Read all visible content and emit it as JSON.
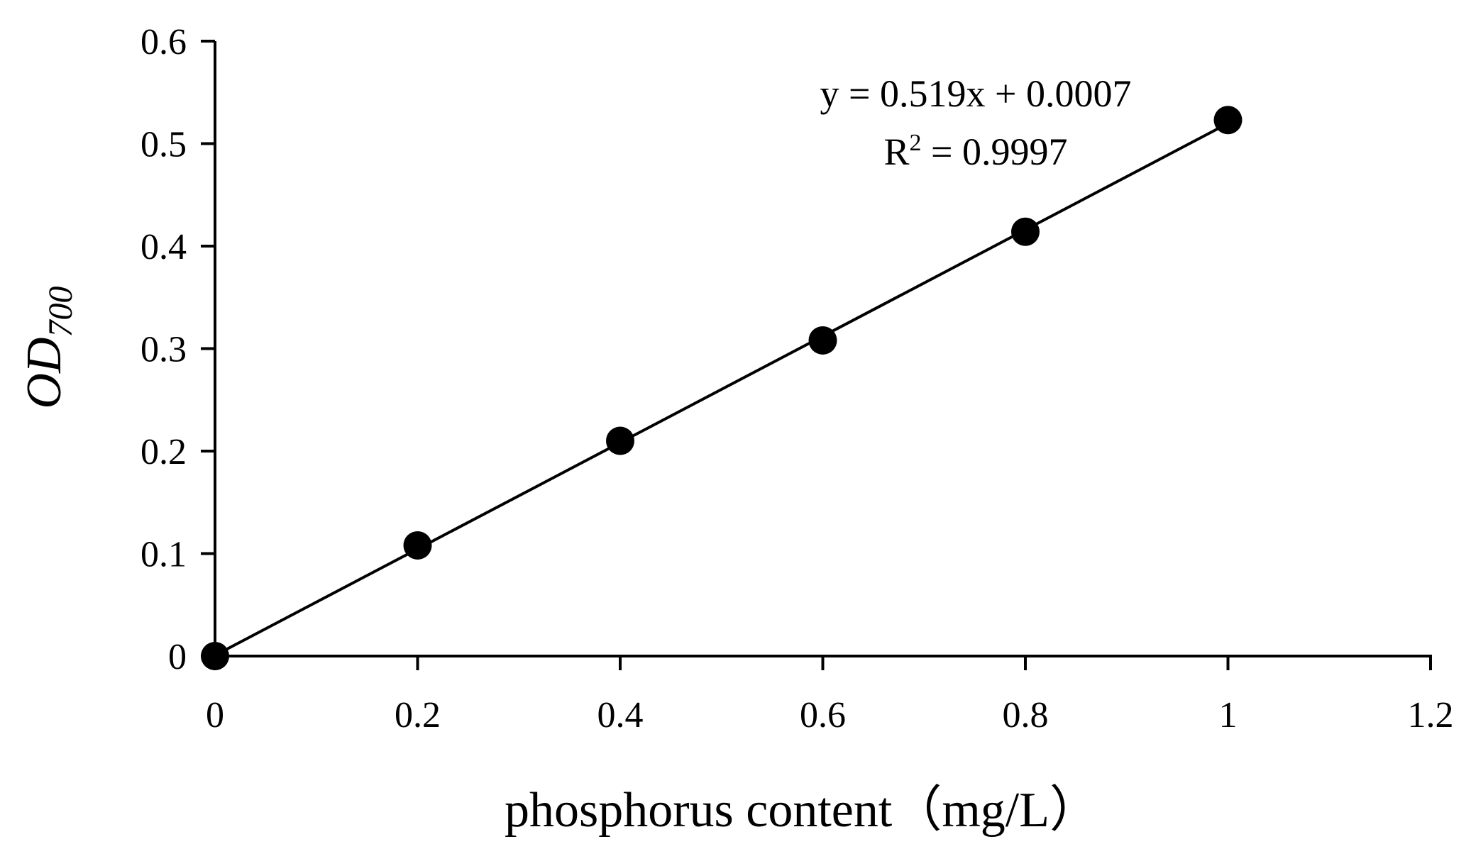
{
  "chart_data": {
    "type": "scatter",
    "xlabel": "phosphorus content（mg/L）",
    "ylabel": {
      "main": "OD",
      "subscript": "700"
    },
    "xlim": [
      0,
      1.2
    ],
    "ylim": [
      0,
      0.6
    ],
    "x_ticks": [
      "0",
      "0.2",
      "0.4",
      "0.6",
      "0.8",
      "1",
      "1.2"
    ],
    "y_ticks": [
      "0",
      "0.1",
      "0.2",
      "0.3",
      "0.4",
      "0.5",
      "0.6"
    ],
    "grid": false,
    "legend": "none",
    "series": [
      {
        "x": [
          0,
          0.2,
          0.4,
          0.6,
          0.8,
          1.0
        ],
        "y": [
          0.0,
          0.108,
          0.21,
          0.308,
          0.414,
          0.523
        ],
        "marker": "circle",
        "color": "#000000"
      }
    ],
    "trendline": {
      "slope": 0.519,
      "intercept": 0.0007,
      "x_range": [
        0,
        1.0
      ],
      "color": "#000000"
    },
    "annotation": {
      "equation": "y = 0.519x + 0.0007",
      "r2_prefix": "R",
      "r2_sup": "2",
      "r2_value": " = 0.9997"
    }
  }
}
